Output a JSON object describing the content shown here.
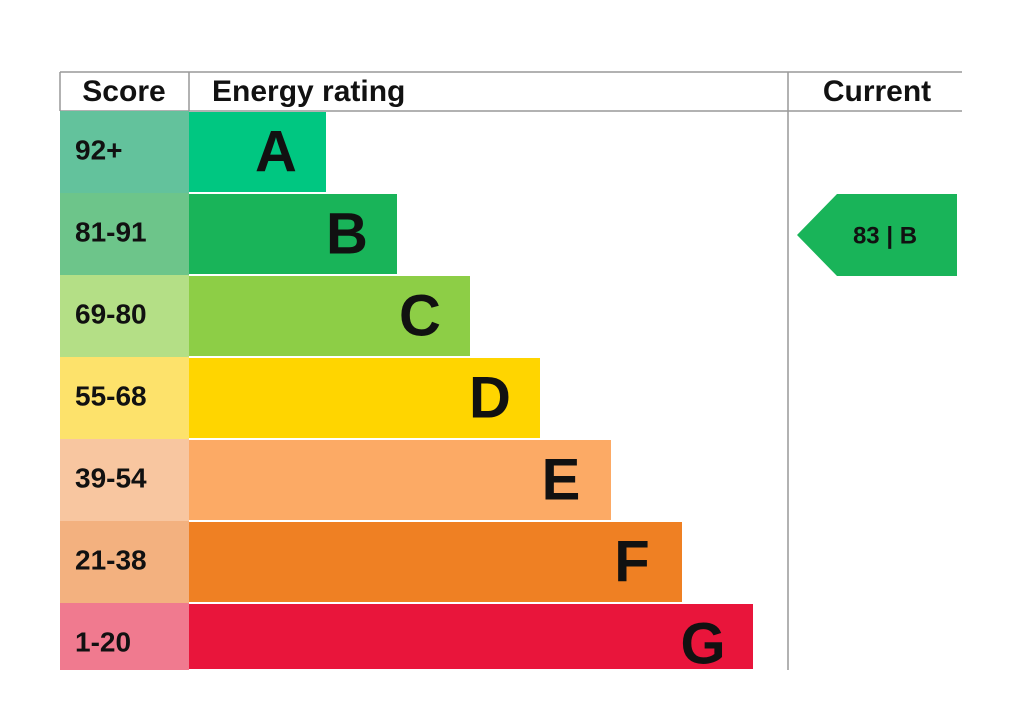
{
  "header": {
    "score": "Score",
    "rating": "Energy rating",
    "current": "Current"
  },
  "rows": [
    {
      "score": "92+",
      "band": "A"
    },
    {
      "score": "81-91",
      "band": "B"
    },
    {
      "score": "69-80",
      "band": "C"
    },
    {
      "score": "55-68",
      "band": "D"
    },
    {
      "score": "39-54",
      "band": "E"
    },
    {
      "score": "21-38",
      "band": "F"
    },
    {
      "score": "1-20",
      "band": "G"
    }
  ],
  "current": {
    "label": "83 | B"
  }
}
